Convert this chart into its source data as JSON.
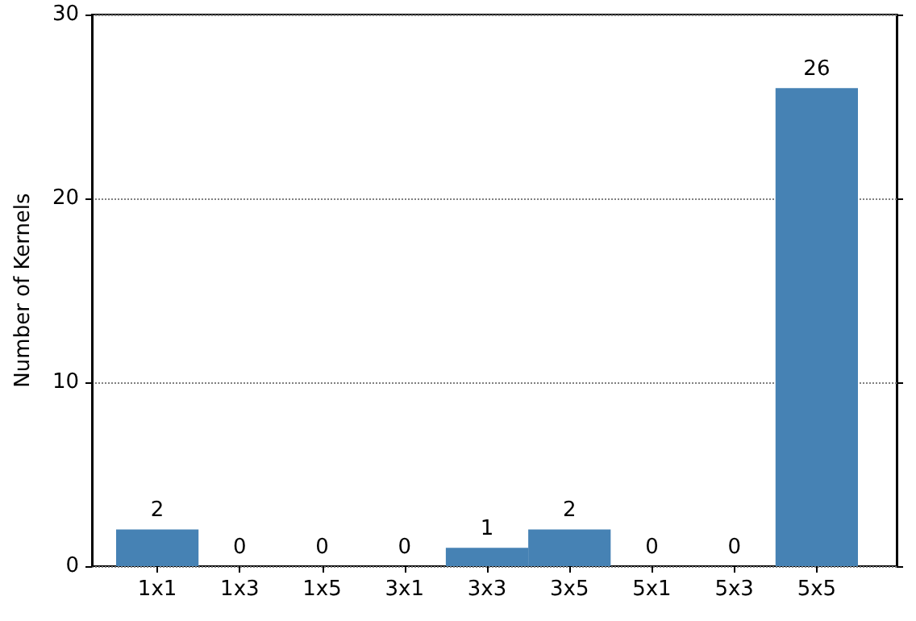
{
  "chart_data": {
    "type": "bar",
    "ylabel": "Number of Kernels",
    "categories": [
      "1x1",
      "1x3",
      "1x5",
      "3x1",
      "3x3",
      "3x5",
      "5x1",
      "5x3",
      "5x5"
    ],
    "values": [
      2,
      0,
      0,
      0,
      1,
      2,
      0,
      0,
      26
    ],
    "color": "#4682b4",
    "ylim": [
      0,
      30
    ],
    "yticks": [
      0,
      10,
      20,
      30
    ],
    "grid": "y",
    "data_labels": true
  }
}
